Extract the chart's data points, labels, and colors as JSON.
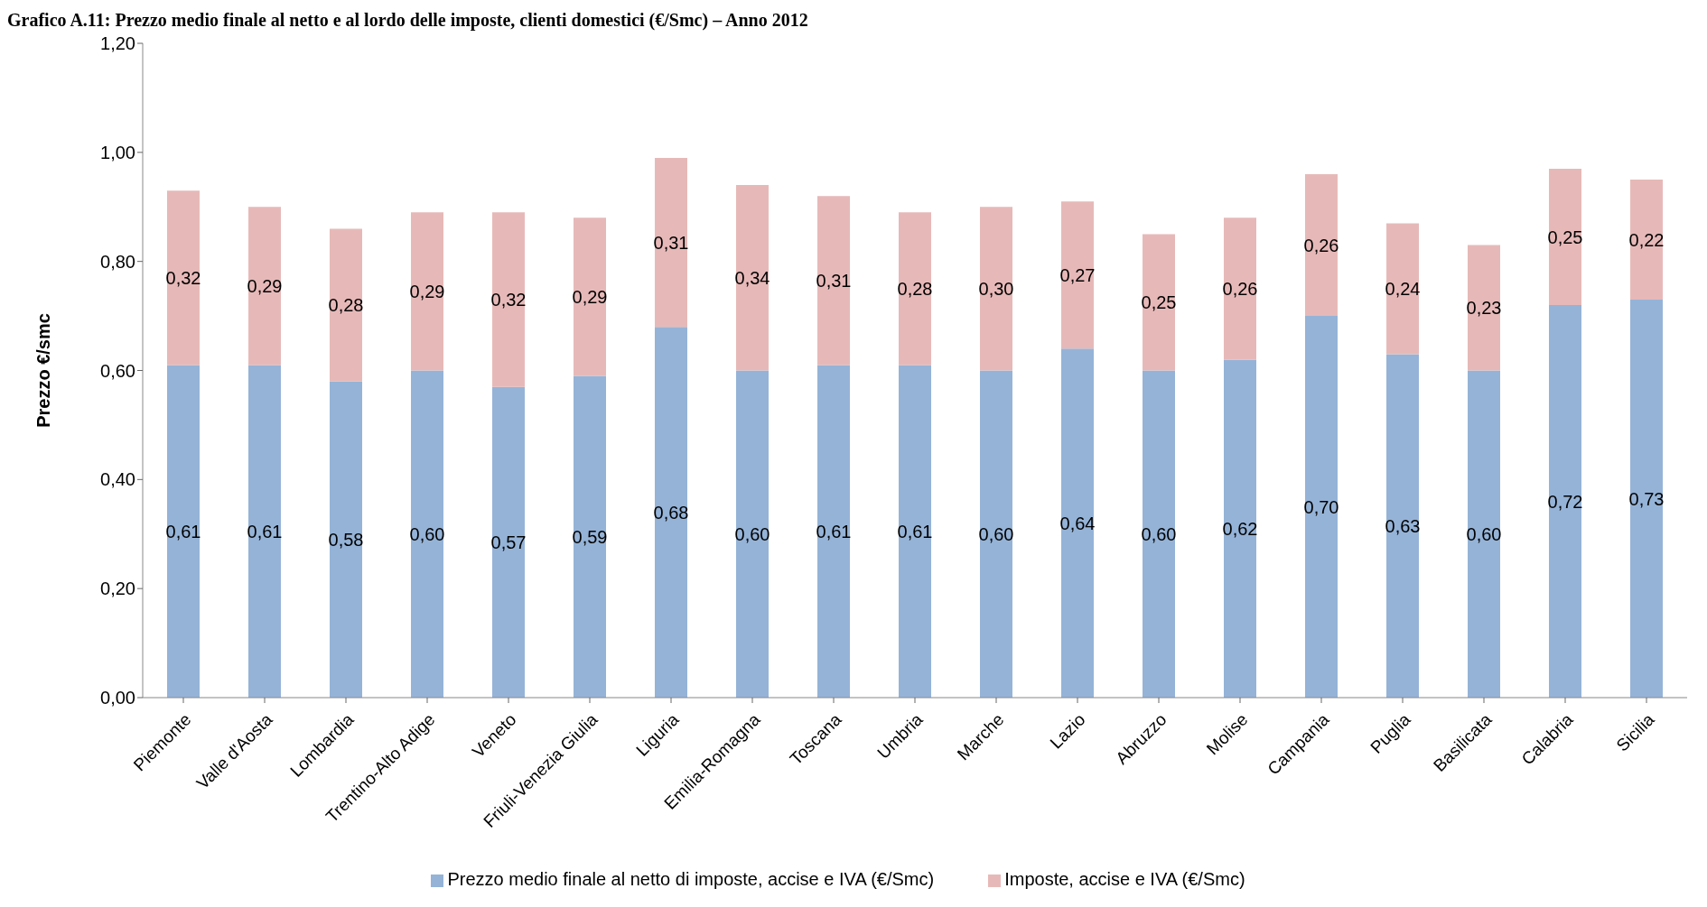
{
  "chart_data": {
    "type": "bar",
    "title": "Grafico A.11: Prezzo medio finale al netto e al lordo delle imposte, clienti domestici (€/Smc) – Anno 2012",
    "ylabel": "Prezzo €/smc",
    "categories": [
      "Piemonte",
      "Valle d'Aosta",
      "Lombardia",
      "Trentino-Alto Adige",
      "Veneto",
      "Friuli-Venezia Giulia",
      "Liguria",
      "Emilia-Romagna",
      "Toscana",
      "Umbria",
      "Marche",
      "Lazio",
      "Abruzzo",
      "Molise",
      "Campania",
      "Puglia",
      "Basilicata",
      "Calabria",
      "Sicilia"
    ],
    "series": [
      {
        "name": "Prezzo medio finale al netto di imposte, accise e IVA (€/Smc)",
        "color": "#95b3d7",
        "values": [
          0.61,
          0.61,
          0.58,
          0.6,
          0.57,
          0.59,
          0.68,
          0.6,
          0.61,
          0.61,
          0.6,
          0.64,
          0.6,
          0.62,
          0.7,
          0.63,
          0.6,
          0.72,
          0.73
        ],
        "value_labels": [
          "0,61",
          "0,61",
          "0,58",
          "0,60",
          "0,57",
          "0,59",
          "0,68",
          "0,60",
          "0,61",
          "0,61",
          "0,60",
          "0,64",
          "0,60",
          "0,62",
          "0,70",
          "0,63",
          "0,60",
          "0,72",
          "0,73"
        ]
      },
      {
        "name": "Imposte, accise e IVA (€/Smc)",
        "color": "#e6b9b8",
        "values": [
          0.32,
          0.29,
          0.28,
          0.29,
          0.32,
          0.29,
          0.31,
          0.34,
          0.31,
          0.28,
          0.3,
          0.27,
          0.25,
          0.26,
          0.26,
          0.24,
          0.23,
          0.25,
          0.22
        ],
        "value_labels": [
          "0,32",
          "0,29",
          "0,28",
          "0,29",
          "0,32",
          "0,29",
          "0,31",
          "0,34",
          "0,31",
          "0,28",
          "0,30",
          "0,27",
          "0,25",
          "0,26",
          "0,26",
          "0,24",
          "0,23",
          "0,25",
          "0,22"
        ]
      }
    ],
    "stacked": true,
    "ylim": [
      0,
      1.2
    ],
    "yticks": [
      {
        "value": 0,
        "label": "0,00"
      },
      {
        "value": 0.2,
        "label": "0,20"
      },
      {
        "value": 0.4,
        "label": "0,40"
      },
      {
        "value": 0.6,
        "label": "0,60"
      },
      {
        "value": 0.8,
        "label": "0,80"
      },
      {
        "value": 1,
        "label": "1,00"
      },
      {
        "value": 1.2,
        "label": "1,20"
      }
    ],
    "grid": false,
    "legend": "bottom"
  }
}
